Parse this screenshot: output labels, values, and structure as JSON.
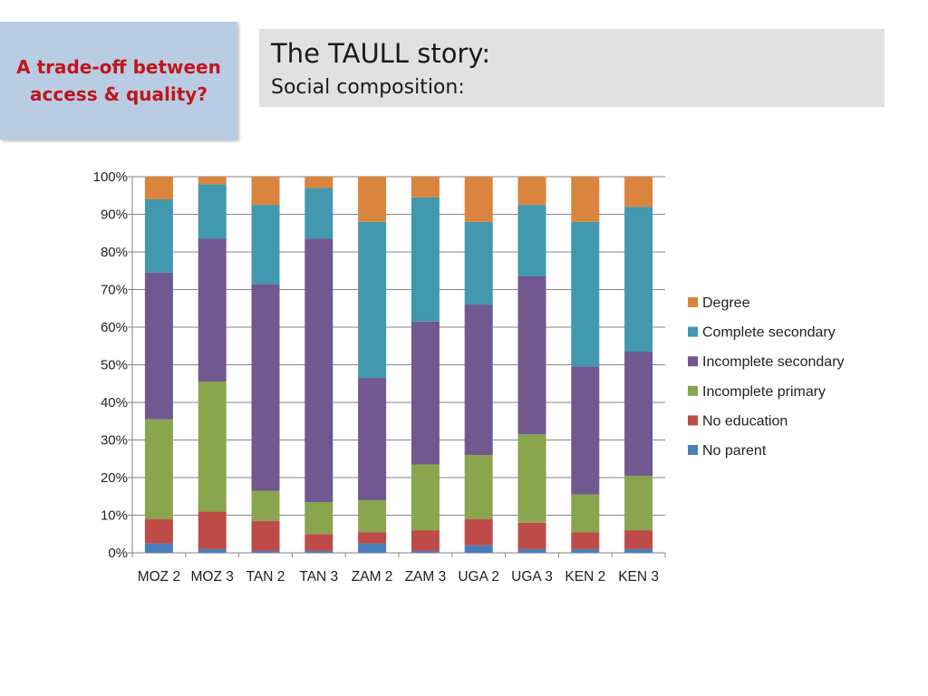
{
  "side_box": {
    "text_line1": "A trade-off between",
    "text_line2": "access & quality?"
  },
  "header": {
    "title": "The TAULL story:",
    "subtitle": "Social composition:"
  },
  "chart_data": {
    "type": "bar",
    "stacked": true,
    "percent": true,
    "title": "",
    "xlabel": "",
    "ylabel": "",
    "ylim": [
      0,
      100
    ],
    "yticks": [
      "0%",
      "10%",
      "20%",
      "30%",
      "40%",
      "50%",
      "60%",
      "70%",
      "80%",
      "90%",
      "100%"
    ],
    "grid": true,
    "legend": "right",
    "categories": [
      "MOZ 2",
      "MOZ 3",
      "TAN 2",
      "TAN 3",
      "ZAM 2",
      "ZAM 3",
      "UGA 2",
      "UGA 3",
      "KEN 2",
      "KEN 3"
    ],
    "series": [
      {
        "name": "No parent",
        "color": "#4a7ebb",
        "values": [
          2.5,
          1,
          0.5,
          0.5,
          2.5,
          0.5,
          2,
          1,
          1,
          1
        ]
      },
      {
        "name": "No education",
        "color": "#be4b48",
        "values": [
          6.5,
          10,
          8,
          4.5,
          3,
          5.5,
          7,
          7,
          4.5,
          5
        ]
      },
      {
        "name": "Incomplete primary",
        "color": "#89a54e",
        "values": [
          26.5,
          34.5,
          8,
          8.5,
          8.5,
          17.5,
          17,
          23.5,
          10,
          14.5
        ]
      },
      {
        "name": "Incomplete secondary",
        "color": "#71588f",
        "values": [
          39,
          38,
          55,
          70,
          32.5,
          38,
          40,
          42,
          34,
          33
        ]
      },
      {
        "name": "Complete secondary",
        "color": "#4198af",
        "values": [
          19.5,
          14.5,
          21,
          13.5,
          41.5,
          33,
          22,
          19,
          38.5,
          38.5
        ]
      },
      {
        "name": "Degree",
        "color": "#db843d",
        "values": [
          6,
          2,
          7.5,
          3,
          12,
          5.5,
          12,
          7.5,
          12,
          8
        ]
      }
    ]
  }
}
